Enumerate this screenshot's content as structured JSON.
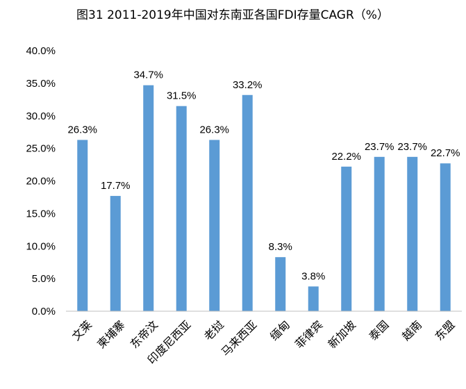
{
  "chart_data": {
    "type": "bar",
    "title": "图31 2011-2019年中国对东南亚各国FDI存量CAGR（%）",
    "xlabel": "",
    "ylabel": "",
    "ylim": [
      0,
      40
    ],
    "yticks": [
      0,
      5,
      10,
      15,
      20,
      25,
      30,
      35,
      40
    ],
    "ytick_labels": [
      "0.0%",
      "5.0%",
      "10.0%",
      "15.0%",
      "20.0%",
      "25.0%",
      "30.0%",
      "35.0%",
      "40.0%"
    ],
    "categories": [
      "文莱",
      "柬埔寨",
      "东帝汶",
      "印度尼西亚",
      "老挝",
      "马来西亚",
      "缅甸",
      "菲律宾",
      "新加坡",
      "泰国",
      "越南",
      "东盟"
    ],
    "values": [
      26.3,
      17.7,
      34.7,
      31.5,
      26.3,
      33.2,
      8.3,
      3.8,
      22.2,
      23.7,
      23.7,
      22.7
    ],
    "data_labels": [
      "26.3%",
      "17.7%",
      "34.7%",
      "31.5%",
      "26.3%",
      "33.2%",
      "8.3%",
      "3.8%",
      "22.2%",
      "23.7%",
      "23.7%",
      "22.7%"
    ],
    "grid": false,
    "legend": "none",
    "bar_color": "#5B9BD5"
  }
}
